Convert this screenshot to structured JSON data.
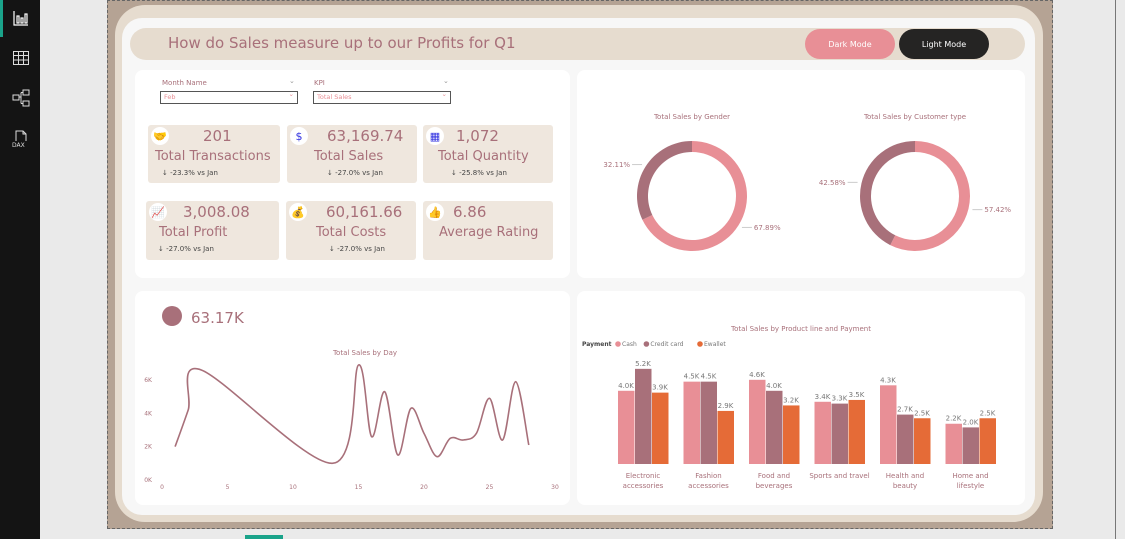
{
  "sidebar": {
    "items": [
      {
        "icon": "report-icon"
      },
      {
        "icon": "table-icon"
      },
      {
        "icon": "model-icon"
      },
      {
        "icon": "dax-icon",
        "label": "DAX"
      }
    ]
  },
  "header": {
    "title": "How do Sales measure up to our Profits for Q1",
    "dark_mode": "Dark Mode",
    "light_mode": "Light Mode"
  },
  "slicers": [
    {
      "label": "Month Name",
      "value": "Feb"
    },
    {
      "label": "KPI",
      "value": "Total Sales"
    }
  ],
  "kpis": [
    {
      "value": "201",
      "label": "Total Transactions",
      "change": "↓ -23.3% vs Jan",
      "icon": "handshake-icon"
    },
    {
      "value": "63,169.74",
      "label": "Total Sales",
      "change": "↓ -27.0% vs Jan",
      "icon": "sales-growth-icon"
    },
    {
      "value": "1,072",
      "label": "Total Quantity",
      "change": "↓ -25.8% vs Jan",
      "icon": "boxes-icon"
    },
    {
      "value": "3,008.08",
      "label": "Total Profit",
      "change": "↓ -27.0% vs Jan",
      "icon": "profit-chart-icon"
    },
    {
      "value": "60,161.66",
      "label": "Total Costs",
      "change": "↓ -27.0% vs Jan",
      "icon": "money-bag-icon"
    },
    {
      "value": "6.86",
      "label": "Average Rating",
      "icon": "rating-icon"
    }
  ],
  "colors": {
    "pink": "#e88f96",
    "mauve": "#a8707a",
    "orange": "#e56b37",
    "beige": "#e6dccf",
    "frame": "#b5a394"
  },
  "line_card": {
    "headline": "63.17K"
  },
  "chart_data": [
    {
      "type": "pie",
      "title": "Total Sales by Gender",
      "values": [
        67.89,
        32.11
      ],
      "labels": [
        "67.89%",
        "32.11%"
      ],
      "colors": [
        "#e88f96",
        "#a8707a"
      ]
    },
    {
      "type": "pie",
      "title": "Total Sales by Customer type",
      "values": [
        57.42,
        42.58
      ],
      "labels": [
        "57.42%",
        "42.58%"
      ],
      "colors": [
        "#e88f96",
        "#a8707a"
      ]
    },
    {
      "type": "line",
      "title": "Total Sales by Day",
      "xlim": [
        0,
        30
      ],
      "ylim": [
        0,
        6000
      ],
      "xticks": [
        "0",
        "5",
        "10",
        "15",
        "20",
        "25",
        "30"
      ],
      "yticks": [
        "0K",
        "2K",
        "4K",
        "6K"
      ],
      "x": [
        1,
        2,
        3,
        13,
        15,
        16,
        17,
        18,
        19,
        20,
        21,
        22,
        23,
        24,
        25,
        26,
        27,
        28
      ],
      "y": [
        2000,
        4200,
        6600,
        1000,
        6900,
        2600,
        5300,
        1500,
        4300,
        2800,
        1400,
        2500,
        2400,
        2800,
        4900,
        2400,
        5900,
        2100
      ]
    },
    {
      "type": "bar",
      "title": "Total Sales by Product line and Payment",
      "legend_title": "Payment",
      "categories": [
        "Electronic accessories",
        "Fashion accessories",
        "Food and beverages",
        "Sports and travel",
        "Health and beauty",
        "Home and lifestyle"
      ],
      "series": [
        {
          "name": "Cash",
          "color": "#e88f96",
          "values": [
            4.0,
            4.5,
            4.6,
            3.4,
            4.3,
            2.2
          ],
          "labels": [
            "4.0K",
            "4.5K",
            "4.6K",
            "3.4K",
            "4.3K",
            "2.2K"
          ]
        },
        {
          "name": "Credit card",
          "color": "#a8707a",
          "values": [
            5.2,
            4.5,
            4.0,
            3.3,
            2.7,
            2.0
          ],
          "labels": [
            "5.2K",
            "4.5K",
            "4.0K",
            "3.3K",
            "2.7K",
            "2.0K"
          ]
        },
        {
          "name": "Ewallet",
          "color": "#e56b37",
          "values": [
            3.9,
            2.9,
            3.2,
            3.5,
            2.5,
            2.5
          ],
          "labels": [
            "3.9K",
            "2.9K",
            "3.2K",
            "3.5K",
            "2.5K",
            "2.5K"
          ]
        }
      ]
    }
  ]
}
